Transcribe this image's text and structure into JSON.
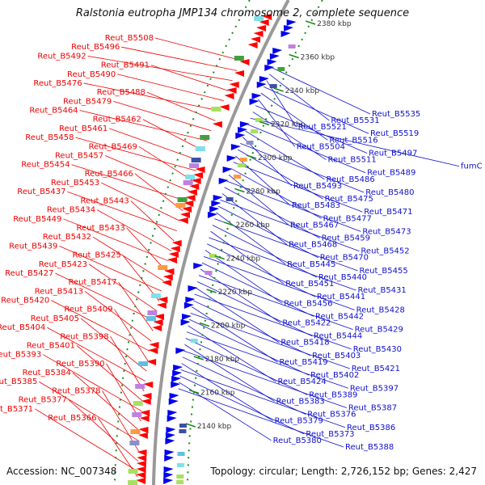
{
  "title": "Ralstonia eutropha JMP134 chromosome 2, complete sequence",
  "accession": "Accession: NC_007348",
  "topology": "Topology: circular; Length: 2,726,152 bp; Genes: 2,427",
  "colors": {
    "left_label": "#ee0000",
    "right_label": "#1010cc",
    "forward": "#ff0000",
    "reverse": "#0000ee",
    "backbone": "#999999",
    "tick": "#1a8a1a"
  },
  "ticks": [
    "2380 kbp",
    "2360 kbp",
    "2340 kbp",
    "2320 kbp",
    "2300 kbp",
    "2280 kbp",
    "2260 kbp",
    "2240 kbp",
    "2220 kbp",
    "2200 kbp",
    "2180 kbp",
    "2160 kbp",
    "2140 kbp"
  ],
  "left_labels": [
    "Reut_B5508",
    "Reut_B5496",
    "Reut_B5492",
    "Reut_B5491",
    "Reut_B5490",
    "Reut_B5476",
    "Reut_B5488",
    "Reut_B5479",
    "Reut_B5464",
    "Reut_B5462",
    "Reut_B5461",
    "Reut_B5458",
    "Reut_B5469",
    "Reut_B5457",
    "Reut_B5454",
    "Reut_B5466",
    "Reut_B5453",
    "Reut_B5437",
    "Reut_B5443",
    "Reut_B5434",
    "Reut_B5449",
    "Reut_B5433",
    "Reut_B5432",
    "Reut_B5439",
    "Reut_B5425",
    "Reut_B5423",
    "Reut_B5427",
    "Reut_B5417",
    "Reut_B5413",
    "Reut_B5420",
    "Reut_B5409",
    "Reut_B5405",
    "Reut_B5404",
    "Reut_B5398",
    "Reut_B5401",
    "Reut_B5393",
    "Reut_B5390",
    "Reut_B5384",
    "Reut_B5385",
    "Reut_B5378",
    "Reut_B5377",
    "Reut_B5371",
    "Reut_B5366"
  ],
  "right_labels": [
    "Reut_B5535",
    "Reut_B5531",
    "Reut_B5521",
    "Reut_B5519",
    "Reut_B5516",
    "Reut_B5504",
    "Reut_B5497",
    "Reut_B5511",
    "fumC",
    "Reut_B5489",
    "Reut_B5486",
    "Reut_B5493",
    "Reut_B5480",
    "Reut_B5475",
    "Reut_B5483",
    "Reut_B5471",
    "Reut_B5477",
    "Reut_B5467",
    "Reut_B5473",
    "Reut_B5459",
    "Reut_B5468",
    "Reut_B5452",
    "Reut_B5470",
    "Reut_B5445",
    "Reut_B5455",
    "Reut_B5440",
    "Reut_B5451",
    "Reut_B5431",
    "Reut_B5441",
    "Reut_B5456",
    "Reut_B5428",
    "Reut_B5442",
    "Reut_B5422",
    "Reut_B5429",
    "Reut_B5444",
    "Reut_B5418",
    "Reut_B5430",
    "Reut_B5403",
    "Reut_B5419",
    "Reut_B5421",
    "Reut_B5402",
    "Reut_B5424",
    "Reut_B5397",
    "Reut_B5389",
    "Reut_B5383",
    "Reut_B5387",
    "Reut_B5376",
    "Reut_B5379",
    "Reut_B5386",
    "Reut_B5373",
    "Reut_B5380",
    "Reut_B5388"
  ]
}
